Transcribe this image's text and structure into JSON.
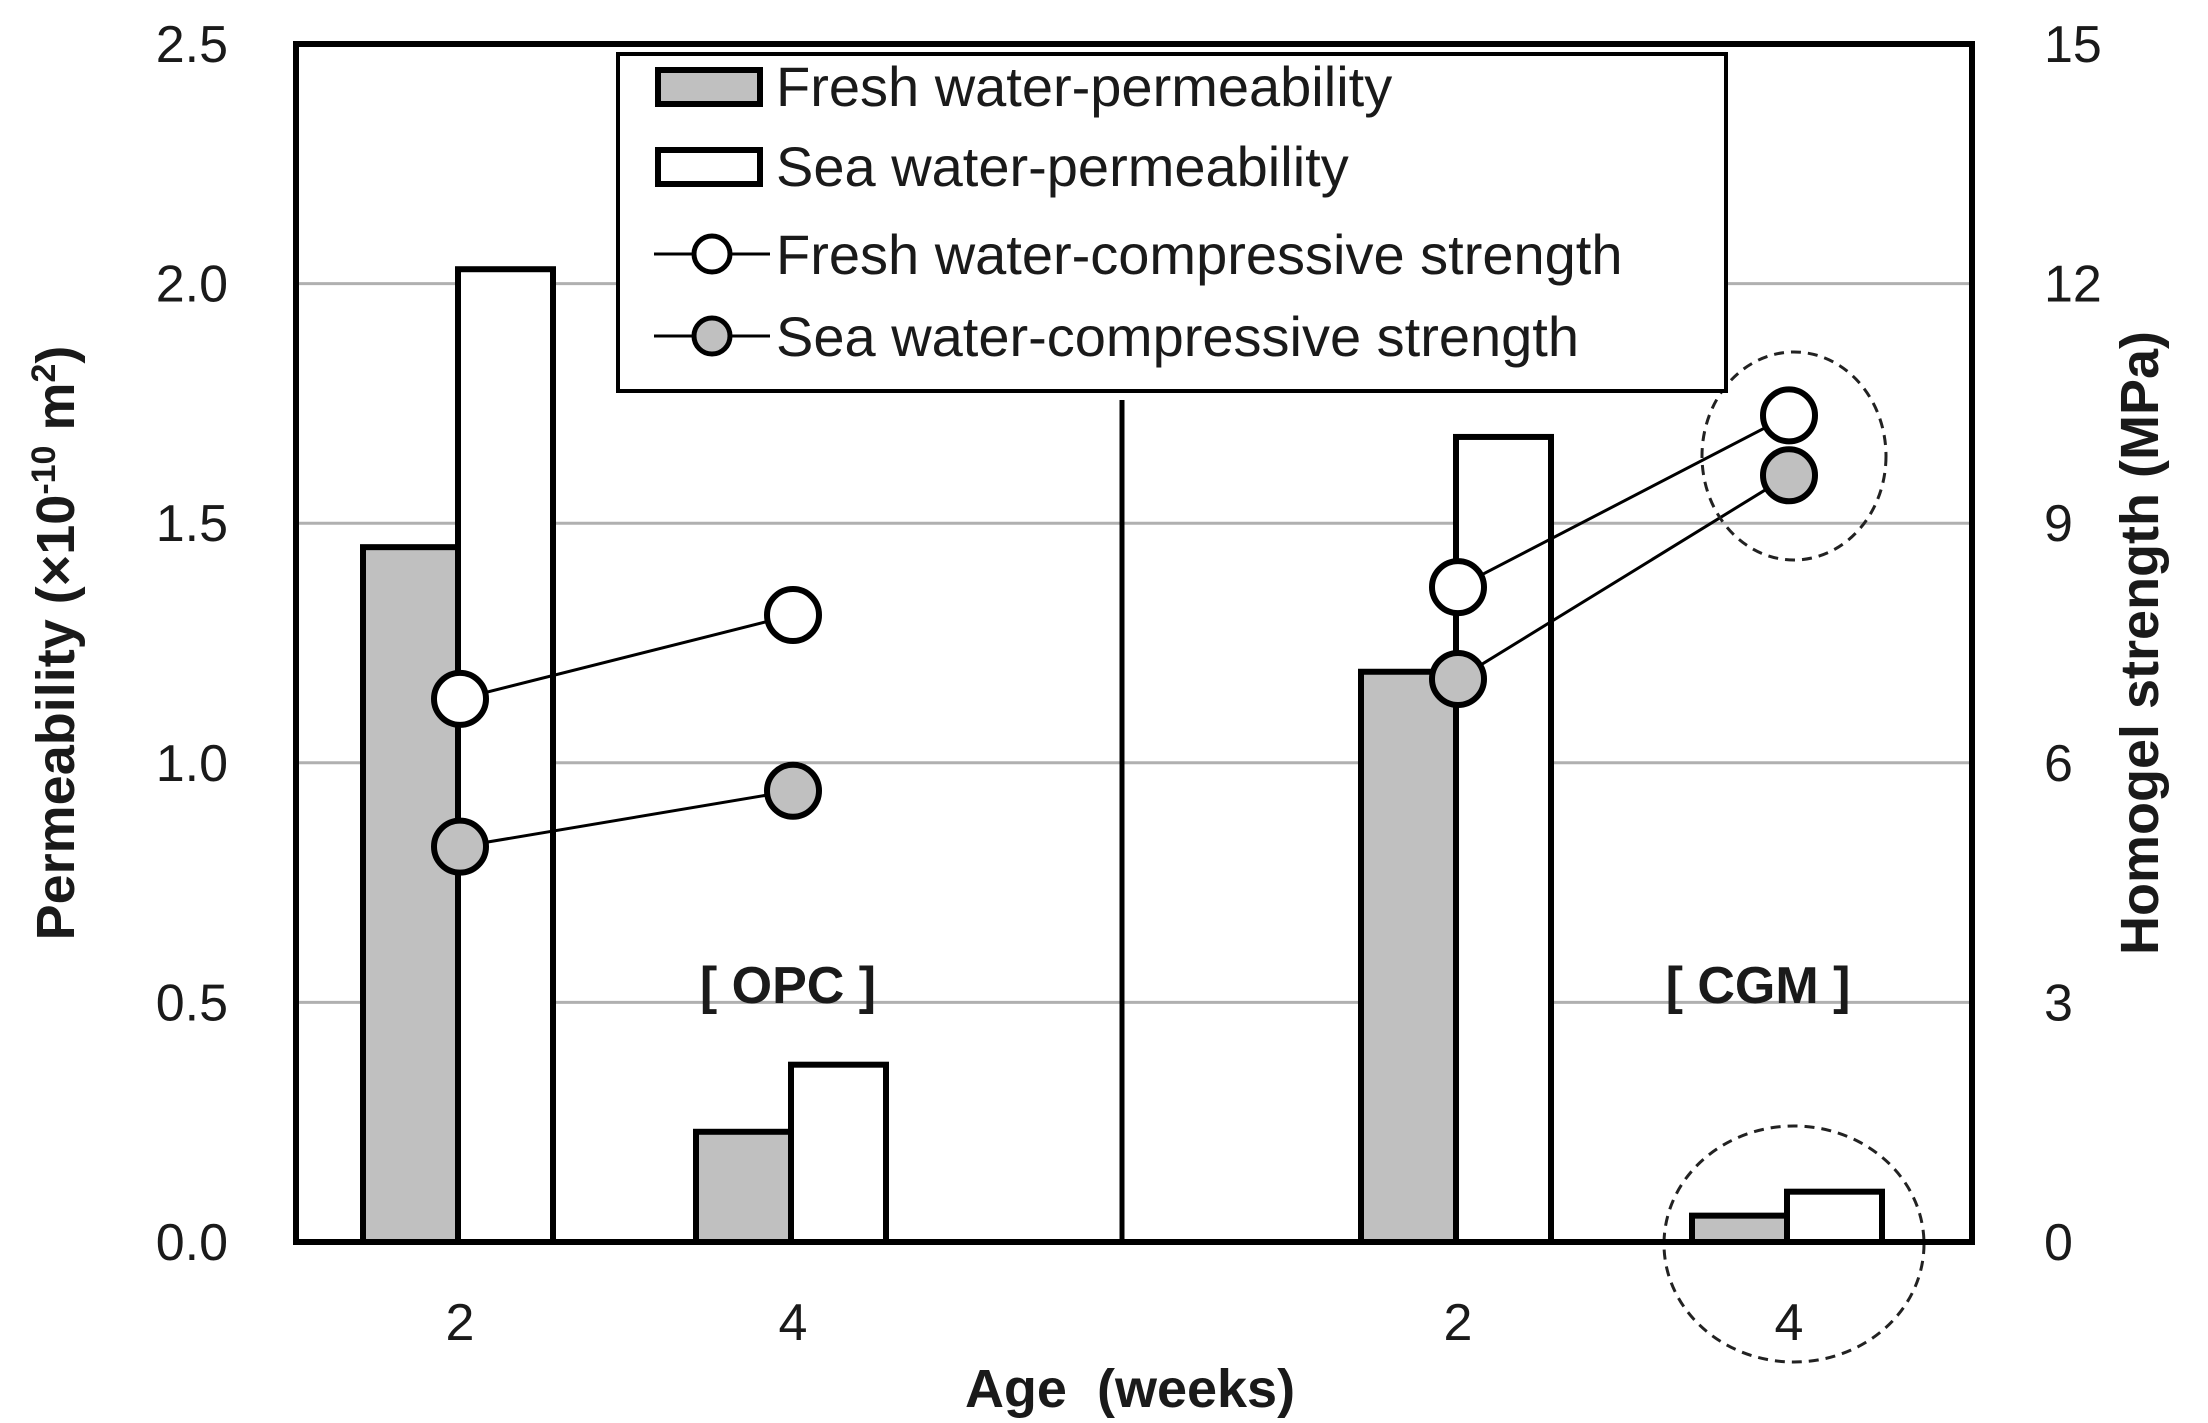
{
  "chart_data": {
    "type": "bar+line",
    "groups": [
      {
        "name": "OPC",
        "label": "[ OPC ]",
        "ages": [
          "2",
          "4"
        ]
      },
      {
        "name": "CGM",
        "label": "[ CGM ]",
        "ages": [
          "2",
          "4"
        ]
      }
    ],
    "categories": [
      "OPC-2",
      "OPC-4",
      "CGM-2",
      "CGM-4"
    ],
    "bar_series": [
      {
        "name": "Fresh water-permeability",
        "color": "#c0c0c0",
        "values": [
          1.45,
          0.23,
          1.19,
          0.055
        ]
      },
      {
        "name": "Sea water-permeability",
        "color": "#ffffff",
        "values": [
          2.03,
          0.37,
          1.68,
          0.105
        ]
      }
    ],
    "line_series": [
      {
        "name": "Fresh water-compressive strength",
        "marker_fill": "#ffffff",
        "values": [
          6.8,
          7.85,
          8.2,
          10.35
        ]
      },
      {
        "name": "Sea water-compressive strength",
        "marker_fill": "#c0c0c0",
        "values": [
          4.95,
          5.65,
          7.05,
          9.6
        ]
      }
    ],
    "y_left": {
      "label_prefix": "Permeability (×10",
      "label_exp": "-10",
      "label_mid": " m",
      "label_exp2": "2",
      "label_suffix": ")",
      "min": 0,
      "max": 2.5,
      "ticks": [
        "0.0",
        "0.5",
        "1.0",
        "1.5",
        "2.0",
        "2.5"
      ]
    },
    "y_right": {
      "label": "Homogel strength (MPa)",
      "min": 0,
      "max": 15,
      "ticks": [
        "0",
        "3",
        "6",
        "9",
        "12",
        "15"
      ]
    },
    "xlabel": "Age  (weeks)",
    "x_ticks": [
      "2",
      "4",
      "2",
      "4"
    ],
    "grid": true,
    "legend_position": "top-center",
    "highlight": "dashed circles around CGM week-4 strength points and CGM week-4 permeability bars"
  },
  "colors": {
    "axis": "#000000",
    "grid": "#b0b0b0",
    "fresh_bar": "#c0c0c0",
    "sea_bar": "#ffffff",
    "marker_gray": "#c0c0c0"
  }
}
